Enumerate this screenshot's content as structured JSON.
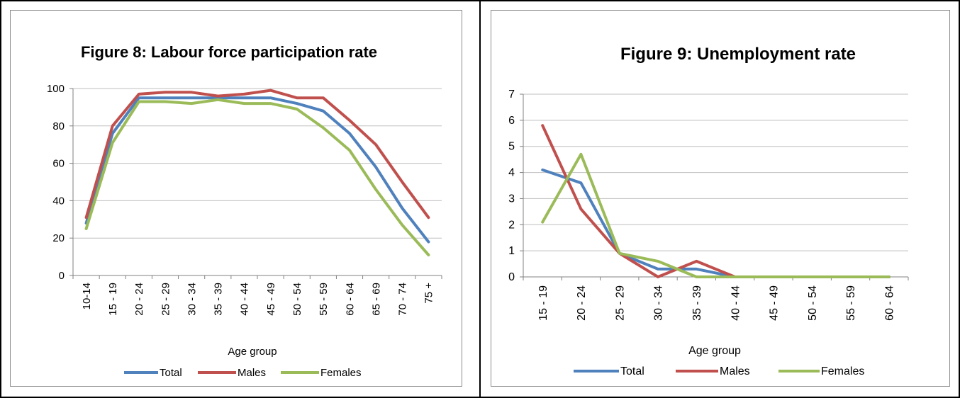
{
  "chart_data": [
    {
      "type": "line",
      "title": "Figure 8: Labour force participation rate",
      "xlabel": "Age group",
      "ylabel": "",
      "ylim": [
        0,
        100
      ],
      "yticks": [
        0,
        20,
        40,
        60,
        80,
        100
      ],
      "grid": true,
      "legend_position": "bottom",
      "categories": [
        "10-14",
        "15 - 19",
        "20 - 24",
        "25 - 29",
        "30 - 34",
        "35 - 39",
        "40 - 44",
        "45 - 49",
        "50 - 54",
        "55 - 59",
        "60 - 64",
        "65 - 69",
        "70 - 74",
        "75 +"
      ],
      "series": [
        {
          "name": "Total",
          "color": "#4f81bd",
          "values": [
            28,
            76,
            95,
            95,
            95,
            95,
            95,
            95,
            92,
            88,
            76,
            58,
            36,
            18
          ]
        },
        {
          "name": "Males",
          "color": "#c0504d",
          "values": [
            31,
            80,
            97,
            98,
            98,
            96,
            97,
            99,
            95,
            95,
            83,
            70,
            50,
            31
          ]
        },
        {
          "name": "Females",
          "color": "#9bbb59",
          "values": [
            25,
            71,
            93,
            93,
            92,
            94,
            92,
            92,
            89,
            79,
            67,
            46,
            27,
            11
          ]
        }
      ]
    },
    {
      "type": "line",
      "title": "Figure 9: Unemployment rate",
      "xlabel": "Age group",
      "ylabel": "",
      "ylim": [
        0,
        7
      ],
      "yticks": [
        0,
        1,
        2,
        3,
        4,
        5,
        6,
        7
      ],
      "grid": true,
      "legend_position": "bottom",
      "categories": [
        "15 - 19",
        "20 - 24",
        "25 - 29",
        "30 - 34",
        "35 - 39",
        "40 - 44",
        "45 - 49",
        "50 - 54",
        "55 - 59",
        "60 - 64"
      ],
      "series": [
        {
          "name": "Total",
          "color": "#4f81bd",
          "values": [
            4.1,
            3.6,
            0.9,
            0.3,
            0.3,
            0,
            0,
            0,
            0,
            0
          ]
        },
        {
          "name": "Males",
          "color": "#c0504d",
          "values": [
            5.8,
            2.6,
            0.9,
            0,
            0.6,
            0,
            0,
            0,
            0,
            0
          ]
        },
        {
          "name": "Females",
          "color": "#9bbb59",
          "values": [
            2.1,
            4.7,
            0.9,
            0.6,
            0,
            0,
            0,
            0,
            0,
            0
          ]
        }
      ]
    }
  ]
}
